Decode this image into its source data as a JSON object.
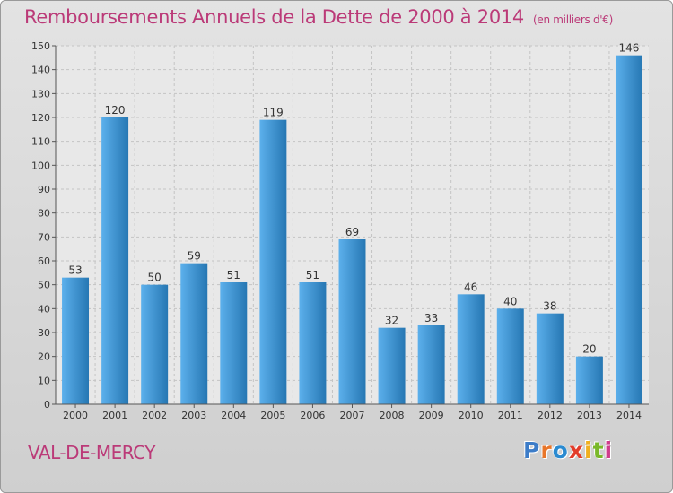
{
  "title": "Remboursements Annuels de la Dette de 2000 à 2014",
  "title_unit": "(en milliers d'€)",
  "place": "VAL-DE-MERCY",
  "logo": {
    "text": "Proxiti",
    "letter_colors": [
      "#3c7cc8",
      "#e8762a",
      "#2a8ad0",
      "#e23c2a",
      "#f0b020",
      "#7ab82a",
      "#d03c8c"
    ]
  },
  "colors": {
    "title": "#bb3a78",
    "bar_light": "#5cb0ec",
    "bar_dark": "#2677b3",
    "grid": "#c4c4c4",
    "plot_bg": "#e8e8e8"
  },
  "chart_data": {
    "type": "bar",
    "categories": [
      "2000",
      "2001",
      "2002",
      "2003",
      "2004",
      "2005",
      "2006",
      "2007",
      "2008",
      "2009",
      "2010",
      "2011",
      "2012",
      "2013",
      "2014"
    ],
    "values": [
      53,
      120,
      50,
      59,
      51,
      119,
      51,
      69,
      32,
      33,
      46,
      40,
      38,
      20,
      146
    ],
    "ylim": [
      0,
      150
    ],
    "yticks": [
      0,
      10,
      20,
      30,
      40,
      50,
      60,
      70,
      80,
      90,
      100,
      110,
      120,
      130,
      140,
      150
    ],
    "grid": true,
    "data_labels": true
  }
}
